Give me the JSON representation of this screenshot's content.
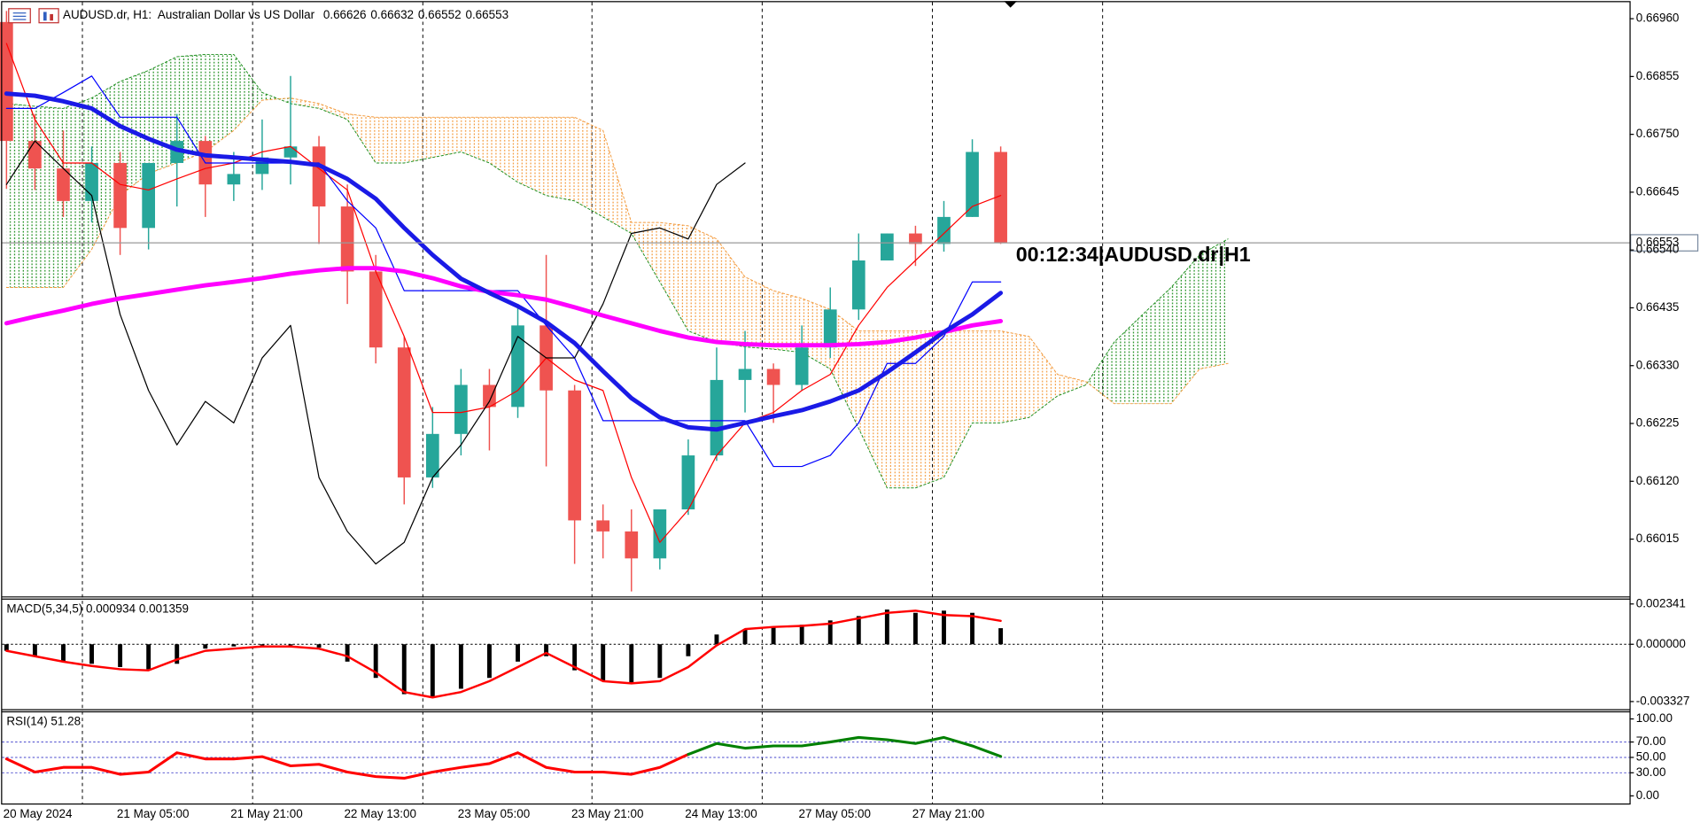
{
  "chart_data": [
    {
      "type": "candlestick",
      "title": "AUDUSD.dr, H1:  Australian Dollar vs US Dollar",
      "quote_values": [
        0.66626,
        0.66632,
        0.66552,
        0.66553
      ],
      "quote_labels": [
        "0.66626",
        "0.66632",
        "0.66552",
        "0.66553"
      ],
      "annotation": "00:12:34|AUDUSD.dr|H1",
      "categories": [
        "20 May 2024",
        null,
        null,
        null,
        "21 May 05:00",
        null,
        null,
        null,
        "21 May 21:00",
        null,
        null,
        null,
        "22 May 13:00",
        null,
        null,
        null,
        "23 May 05:00",
        null,
        null,
        null,
        "23 May 21:00",
        null,
        null,
        null,
        "24 May 13:00",
        null,
        null,
        null,
        "27 May 05:00",
        null,
        null,
        null,
        "27 May 21:00",
        null,
        null,
        null,
        null,
        null,
        null,
        null,
        null,
        null,
        null,
        null
      ],
      "open": [
        0.66954,
        0.66738,
        0.66688,
        0.66629,
        0.66698,
        0.6658,
        0.66698,
        0.66738,
        0.66659,
        0.66678,
        0.66708,
        0.66728,
        0.66619,
        0.66501,
        0.66363,
        0.66127,
        0.66206,
        0.66295,
        0.66255,
        0.66403,
        0.66285,
        0.66049,
        0.66029,
        0.6598,
        0.66069,
        0.66167,
        0.66304,
        0.66324,
        0.66295,
        0.66363,
        0.66432,
        0.66521,
        0.6657,
        0.66551,
        0.666,
        0.66718,
        null,
        null,
        null,
        null,
        null,
        null,
        null,
        null
      ],
      "high": [
        0.66974,
        0.66787,
        0.66757,
        0.66728,
        0.66718,
        0.66698,
        0.66787,
        0.66747,
        0.66718,
        0.66777,
        0.66856,
        0.66747,
        0.66659,
        0.66531,
        0.66383,
        0.66255,
        0.66324,
        0.66324,
        0.66442,
        0.66531,
        0.66295,
        0.66078,
        0.66069,
        0.66069,
        0.66196,
        0.66363,
        0.66393,
        0.66334,
        0.66403,
        0.66472,
        0.6657,
        0.6657,
        0.66584,
        0.66629,
        0.66741,
        0.66728,
        null,
        null,
        null,
        null,
        null,
        null,
        null,
        null
      ],
      "low": [
        0.66651,
        0.66649,
        0.666,
        0.6659,
        0.66531,
        0.66541,
        0.66619,
        0.666,
        0.66629,
        0.66649,
        0.66659,
        0.66551,
        0.66442,
        0.66334,
        0.66078,
        0.66108,
        0.66167,
        0.66176,
        0.66235,
        0.66147,
        0.6597,
        0.6598,
        0.6592,
        0.6596,
        0.66059,
        0.66157,
        0.66245,
        0.66226,
        0.66285,
        0.66344,
        0.66413,
        0.66521,
        0.66511,
        0.66537,
        0.666,
        0.66551,
        null,
        null,
        null,
        null,
        null,
        null,
        null,
        null
      ],
      "close": [
        0.66738,
        0.66688,
        0.66629,
        0.66698,
        0.6658,
        0.66698,
        0.66738,
        0.66659,
        0.66678,
        0.66708,
        0.66728,
        0.66619,
        0.66501,
        0.66363,
        0.66127,
        0.66206,
        0.66295,
        0.66255,
        0.66403,
        0.66285,
        0.66049,
        0.66029,
        0.6598,
        0.66069,
        0.66167,
        0.66304,
        0.66324,
        0.66295,
        0.66363,
        0.66432,
        0.66521,
        0.6657,
        0.66551,
        0.666,
        0.66718,
        0.66553,
        null,
        null,
        null,
        null,
        null,
        null,
        null,
        null
      ],
      "up_color": "#26a69a",
      "down_color": "#ef5350",
      "series": [
        {
          "color": "#ff0000",
          "width": 1,
          "values": [
            0.66915,
            0.66777,
            0.66698,
            0.66698,
            0.66659,
            0.66649,
            0.66669,
            0.66688,
            0.66698,
            0.66718,
            0.66728,
            0.66688,
            0.66649,
            0.66501,
            0.66383,
            0.66245,
            0.66245,
            0.66255,
            0.66285,
            0.66344,
            0.66304,
            0.66285,
            0.66127,
            0.66009,
            0.66068,
            0.66167,
            0.66226,
            0.66245,
            0.66285,
            0.66314,
            0.66403,
            0.66472,
            0.66521,
            0.6657,
            0.66619,
            0.66639,
            null,
            null,
            null,
            null,
            null,
            null,
            null,
            null
          ]
        },
        {
          "color": "#0000ff",
          "width": 1,
          "values": [
            0.66797,
            0.66797,
            0.66826,
            0.66856,
            0.66781,
            0.66781,
            0.66781,
            0.66698,
            0.66698,
            0.66698,
            0.66698,
            0.66698,
            0.66629,
            0.6658,
            0.66466,
            0.66466,
            0.66466,
            0.66466,
            0.66466,
            0.66403,
            0.66344,
            0.6623,
            0.6623,
            0.6623,
            0.6623,
            0.6623,
            0.6623,
            0.66147,
            0.66147,
            0.66167,
            0.66226,
            0.66334,
            0.66334,
            0.66383,
            0.66482,
            0.66482,
            null,
            null,
            null,
            null,
            null,
            null,
            null,
            null
          ]
        },
        {
          "color": "#000000",
          "width": 1,
          "values": [
            0.66659,
            0.66738,
            0.66688,
            0.66639,
            0.66423,
            0.66285,
            0.66186,
            0.66265,
            0.66226,
            0.66344,
            0.66403,
            0.66127,
            0.66029,
            0.6597,
            0.66009,
            0.66127,
            0.66186,
            0.66265,
            0.66383,
            0.66344,
            0.66344,
            0.66442,
            0.6657,
            0.6658,
            0.6656,
            0.66659,
            0.66698,
            null,
            null,
            null,
            null,
            null,
            null,
            null,
            null,
            null,
            null,
            null,
            null,
            null,
            null,
            null,
            null,
            null
          ]
        },
        {
          "color": "#ff00ff",
          "width": 4,
          "values": [
            0.66407,
            0.66419,
            0.6643,
            0.66442,
            0.66452,
            0.6646,
            0.66468,
            0.66476,
            0.66482,
            0.66489,
            0.66497,
            0.66503,
            0.66507,
            0.66507,
            0.66501,
            0.66489,
            0.66474,
            0.66464,
            0.66458,
            0.6645,
            0.66436,
            0.66421,
            0.66407,
            0.66393,
            0.66381,
            0.66373,
            0.66369,
            0.66367,
            0.66367,
            0.66367,
            0.66369,
            0.66373,
            0.66381,
            0.66391,
            0.66403,
            0.66411,
            null,
            null,
            null,
            null,
            null,
            null,
            null,
            null
          ]
        },
        {
          "color": "#1a1ae6",
          "width": 4,
          "values": [
            0.66824,
            0.6682,
            0.6681,
            0.66797,
            0.66765,
            0.66742,
            0.66722,
            0.66712,
            0.66708,
            0.66704,
            0.667,
            0.66694,
            0.66669,
            0.66633,
            0.6658,
            0.66531,
            0.66488,
            0.66462,
            0.66438,
            0.66409,
            0.66371,
            0.6632,
            0.66271,
            0.66236,
            0.66218,
            0.66214,
            0.66226,
            0.66238,
            0.66249,
            0.66265,
            0.66285,
            0.66318,
            0.66354,
            0.66391,
            0.66423,
            0.66462,
            null,
            null,
            null,
            null,
            null,
            null,
            null,
            null
          ]
        }
      ],
      "cloud": {
        "bull_color": "#1f8f1f",
        "bear_color": "#f39a3c",
        "span_a": [
          0.66806,
          0.66801,
          0.66797,
          0.66816,
          0.66846,
          0.66866,
          0.66891,
          0.66895,
          0.66895,
          0.66826,
          0.66806,
          0.66797,
          0.66777,
          0.66698,
          0.66698,
          0.66708,
          0.66718,
          0.66698,
          0.66663,
          0.66639,
          0.66629,
          0.666,
          0.6657,
          0.66482,
          0.66393,
          0.66373,
          0.66364,
          0.6636,
          0.66354,
          0.66324,
          0.66216,
          0.66108,
          0.66108,
          0.66127,
          0.66226,
          0.66226,
          0.66236,
          0.66275,
          0.66295,
          0.66373,
          0.66423,
          0.66472,
          0.66531,
          0.6656
        ],
        "span_b": [
          0.66472,
          0.66472,
          0.66472,
          0.66541,
          0.66639,
          0.66679,
          0.66698,
          0.66718,
          0.66757,
          0.66812,
          0.66816,
          0.66806,
          0.66787,
          0.66781,
          0.66781,
          0.66781,
          0.66781,
          0.66781,
          0.66781,
          0.66781,
          0.66781,
          0.66757,
          0.6659,
          0.6659,
          0.66584,
          0.6656,
          0.66491,
          0.66466,
          0.66452,
          0.66432,
          0.66393,
          0.66393,
          0.66393,
          0.66393,
          0.66393,
          0.66393,
          0.66383,
          0.66314,
          0.66301,
          0.66261,
          0.66261,
          0.66261,
          0.66324,
          0.66334
        ]
      },
      "last_price": {
        "value": 0.66553,
        "label": "0.66553"
      },
      "ylim": [
        0.65913,
        0.6699
      ],
      "yticks": [
        {
          "value": 0.6696,
          "label": "0.66960"
        },
        {
          "value": 0.66855,
          "label": "0.66855"
        },
        {
          "value": 0.6675,
          "label": "0.66750"
        },
        {
          "value": 0.66645,
          "label": "0.66645"
        },
        {
          "value": 0.6654,
          "label": "0.66540"
        },
        {
          "value": 0.66435,
          "label": "0.66435"
        },
        {
          "value": 0.6633,
          "label": "0.66330"
        },
        {
          "value": 0.66225,
          "label": "0.66225"
        },
        {
          "value": 0.6612,
          "label": "0.66120"
        },
        {
          "value": 0.66015,
          "label": "0.66015"
        }
      ],
      "grid": false
    },
    {
      "type": "macd",
      "title": "MACD(5,34,5) 0.000934 0.001359",
      "histogram": [
        -0.000378,
        -0.000693,
        -0.001008,
        -0.001134,
        -0.001323,
        -0.001449,
        -0.001134,
        -0.000252,
        -0.000126,
        -6.3e-05,
        -6.3e-05,
        -0.000189,
        -0.001008,
        -0.001953,
        -0.002898,
        -0.003087,
        -0.002583,
        -0.001953,
        -0.001008,
        -0.000693,
        -0.001512,
        -0.002142,
        -0.002268,
        -0.001953,
        -0.000693,
        0.000567,
        0.000882,
        0.001008,
        0.001134,
        0.001386,
        0.001638,
        0.002016,
        0.001827,
        0.001953,
        0.001827,
        0.000934
      ],
      "signal": [
        -0.000378,
        -0.000693,
        -0.001008,
        -0.00126,
        -0.001449,
        -0.001512,
        -0.000882,
        -0.000378,
        -0.000252,
        -0.000126,
        -0.000126,
        -0.000252,
        -0.000693,
        -0.001638,
        -0.002772,
        -0.003087,
        -0.002772,
        -0.002142,
        -0.001323,
        -0.000504,
        -0.001323,
        -0.002142,
        -0.002268,
        -0.002142,
        -0.001323,
        -6.3e-05,
        0.000882,
        0.001008,
        0.001071,
        0.001197,
        0.001512,
        0.001827,
        0.001953,
        0.001701,
        0.001638,
        0.001359
      ],
      "histogram_color": "#000000",
      "signal_color": "#ff0000",
      "levels": [
        0
      ],
      "ylim": [
        -0.003516,
        0.002656
      ],
      "yticks": [
        0.002341,
        {
          "value": 0,
          "label": "0.000000"
        },
        -0.003327
      ]
    },
    {
      "type": "line",
      "title": "RSI(14) 51.28",
      "series": [
        {
          "color": "#ff0000",
          "values": [
            48,
            31,
            37,
            37,
            28,
            31,
            56,
            48,
            48,
            51,
            39,
            41,
            31,
            25,
            23,
            31,
            37,
            42,
            56,
            37,
            31,
            31,
            28,
            37,
            54,
            null,
            null,
            null,
            null,
            null,
            null,
            null,
            null,
            null,
            null,
            null
          ]
        },
        {
          "color": "#008000",
          "values": [
            null,
            null,
            null,
            null,
            null,
            null,
            null,
            null,
            null,
            null,
            null,
            null,
            null,
            null,
            null,
            null,
            null,
            null,
            null,
            null,
            null,
            null,
            null,
            null,
            54,
            68,
            62,
            65,
            65,
            70,
            76,
            73,
            68,
            76,
            65,
            51.28
          ]
        }
      ],
      "levels": [
        70,
        50,
        30
      ],
      "ylim": [
        -9.9,
        109.9
      ],
      "yticks": [
        {
          "value": 100,
          "label": "100.00"
        },
        {
          "value": 70,
          "label": "70.00"
        },
        {
          "value": 50,
          "label": "50.00"
        },
        {
          "value": 30,
          "label": "30.00"
        },
        {
          "value": 0,
          "label": "0.00"
        }
      ]
    }
  ]
}
